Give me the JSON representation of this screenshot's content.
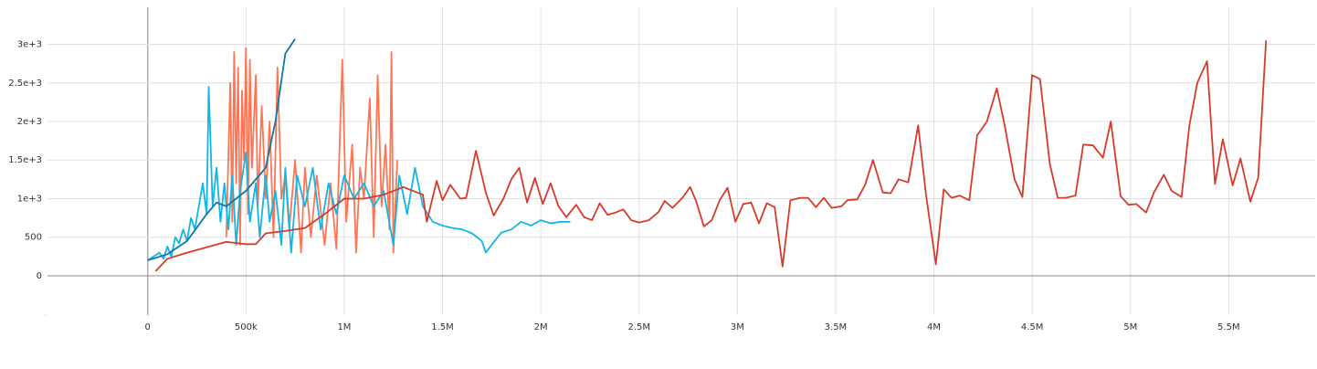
{
  "chart_data": {
    "type": "line",
    "xlim": [
      -510000,
      5940000
    ],
    "ylim": [
      -510,
      3480
    ],
    "xticks": [
      0,
      {
        "value": 500000,
        "label": "500k"
      },
      {
        "value": 1000000,
        "label": "1M"
      },
      {
        "value": 1500000,
        "label": "1.5M"
      },
      {
        "value": 2000000,
        "label": "2M"
      },
      {
        "value": 2500000,
        "label": "2.5M"
      },
      {
        "value": 3000000,
        "label": "3M"
      },
      {
        "value": 3500000,
        "label": "3.5M"
      },
      {
        "value": 4000000,
        "label": "4M"
      },
      {
        "value": 4500000,
        "label": "4.5M"
      },
      {
        "value": 5000000,
        "label": "5M"
      },
      {
        "value": 5500000,
        "label": "5.5M"
      }
    ],
    "yticks": [
      0,
      500,
      {
        "value": 1000,
        "label": "1e+3"
      },
      {
        "value": 1500,
        "label": "1.5e+3"
      },
      {
        "value": 2000,
        "label": "2e+3"
      },
      {
        "value": 2500,
        "label": "2.5e+3"
      },
      {
        "value": 3000,
        "label": "3e+3"
      }
    ],
    "grid": true,
    "series": [
      {
        "color": "#ff7554",
        "x": [
          400000,
          420000,
          430000,
          440000,
          450000,
          460000,
          470000,
          480000,
          490000,
          500000,
          510000,
          520000,
          530000,
          550000,
          560000,
          580000,
          600000,
          620000,
          640000,
          660000,
          680000,
          700000,
          720000,
          750000,
          780000,
          800000,
          830000,
          860000,
          900000,
          930000,
          960000,
          990000,
          1010000,
          1040000,
          1060000,
          1080000,
          1100000,
          1130000,
          1150000,
          1170000,
          1190000,
          1210000,
          1230000,
          1240000,
          1250000,
          1270000
        ],
        "values": [
          500,
          2500,
          700,
          2900,
          1200,
          2700,
          400,
          2400,
          1500,
          2950,
          800,
          2800,
          1400,
          2600,
          900,
          2200,
          1000,
          2000,
          500,
          2700,
          1000,
          1300,
          600,
          1500,
          300,
          1400,
          500,
          1300,
          400,
          1200,
          350,
          2800,
          700,
          1700,
          300,
          1400,
          1000,
          2300,
          500,
          2600,
          900,
          1700,
          600,
          2900,
          300,
          1500
        ]
      },
      {
        "color": "#12b5e5",
        "x": [
          0,
          30000,
          60000,
          80000,
          100000,
          120000,
          140000,
          160000,
          180000,
          200000,
          220000,
          240000,
          260000,
          280000,
          300000,
          310000,
          330000,
          350000,
          370000,
          390000,
          410000,
          430000,
          450000,
          470000,
          500000,
          520000,
          550000,
          570000,
          600000,
          620000,
          650000,
          680000,
          700000,
          730000,
          760000,
          800000,
          840000,
          880000,
          920000,
          960000,
          1000000,
          1050000,
          1100000,
          1150000,
          1200000,
          1250000,
          1280000,
          1320000,
          1360000,
          1400000,
          1450000,
          1500000,
          1550000,
          1600000,
          1650000,
          1700000,
          1720000,
          1750000,
          1800000,
          1850000,
          1900000,
          1950000,
          2000000,
          2050000,
          2100000,
          2150000
        ],
        "values": [
          200,
          250,
          300,
          220,
          380,
          250,
          500,
          420,
          600,
          450,
          750,
          600,
          900,
          1200,
          800,
          2450,
          900,
          1400,
          700,
          1200,
          600,
          1300,
          400,
          1100,
          1600,
          700,
          1200,
          500,
          1300,
          700,
          1100,
          400,
          1400,
          300,
          1300,
          900,
          1400,
          600,
          1200,
          800,
          1300,
          1000,
          1200,
          900,
          1100,
          400,
          1300,
          800,
          1400,
          900,
          700,
          650,
          620,
          600,
          550,
          450,
          300,
          400,
          560,
          600,
          700,
          650,
          720,
          680,
          700,
          700
        ]
      },
      {
        "color": "#0f77a8",
        "x": [
          0,
          100000,
          200000,
          300000,
          350000,
          400000,
          500000,
          600000,
          650000,
          700000,
          750000
        ],
        "values": [
          200,
          280,
          450,
          800,
          950,
          900,
          1100,
          1400,
          2000,
          2880,
          3070
        ]
      },
      {
        "color": "#d73a2a",
        "x": [
          40000,
          100000,
          200000,
          300000,
          400000,
          500000,
          550000,
          600000,
          700000,
          800000,
          900000,
          1000000,
          1100000,
          1200000,
          1300000,
          1400000,
          1420000,
          1470000,
          1500000,
          1540000,
          1590000,
          1620000,
          1670000,
          1720000,
          1760000,
          1810000,
          1850000,
          1890000,
          1930000,
          1970000,
          2010000,
          2050000,
          2090000,
          2130000,
          2180000,
          2220000,
          2260000,
          2300000,
          2340000,
          2380000,
          2420000,
          2460000,
          2500000,
          2550000,
          2600000,
          2630000,
          2670000,
          2720000,
          2760000,
          2790000,
          2830000,
          2870000,
          2910000,
          2950000,
          2990000,
          3030000,
          3070000,
          3110000,
          3150000,
          3190000,
          3230000,
          3270000,
          3320000,
          3360000,
          3400000,
          3440000,
          3480000,
          3530000,
          3560000,
          3610000,
          3650000,
          3690000,
          3740000,
          3780000,
          3820000,
          3870000,
          3920000,
          3960000,
          4010000,
          4050000,
          4090000,
          4130000,
          4180000,
          4220000,
          4270000,
          4320000,
          4360000,
          4410000,
          4450000,
          4500000,
          4540000,
          4590000,
          4630000,
          4670000,
          4720000,
          4760000,
          4810000,
          4860000,
          4900000,
          4950000,
          4990000,
          5030000,
          5080000,
          5120000,
          5170000,
          5210000,
          5260000,
          5300000,
          5340000,
          5390000,
          5430000,
          5470000,
          5520000,
          5560000,
          5610000,
          5650000,
          5690000
        ],
        "values": [
          60,
          220,
          300,
          370,
          440,
          410,
          410,
          550,
          580,
          620,
          800,
          1000,
          1000,
          1050,
          1150,
          1050,
          700,
          1230,
          980,
          1180,
          1000,
          1010,
          1620,
          1080,
          780,
          1000,
          1250,
          1400,
          950,
          1270,
          930,
          1200,
          900,
          760,
          920,
          760,
          720,
          940,
          790,
          820,
          860,
          720,
          690,
          720,
          830,
          970,
          880,
          1010,
          1150,
          970,
          640,
          720,
          980,
          1140,
          700,
          930,
          950,
          680,
          940,
          890,
          120,
          980,
          1010,
          1010,
          890,
          1010,
          880,
          900,
          980,
          990,
          1180,
          1500,
          1080,
          1070,
          1250,
          1210,
          1950,
          1050,
          150,
          1120,
          1010,
          1040,
          980,
          1820,
          2000,
          2430,
          1950,
          1250,
          1020,
          2600,
          2550,
          1450,
          1010,
          1010,
          1040,
          1700,
          1690,
          1530,
          2000,
          1030,
          920,
          930,
          820,
          1080,
          1310,
          1100,
          1020,
          1950,
          2500,
          2780,
          1190,
          1770,
          1170,
          1520,
          960,
          1270,
          3050
        ]
      }
    ]
  }
}
